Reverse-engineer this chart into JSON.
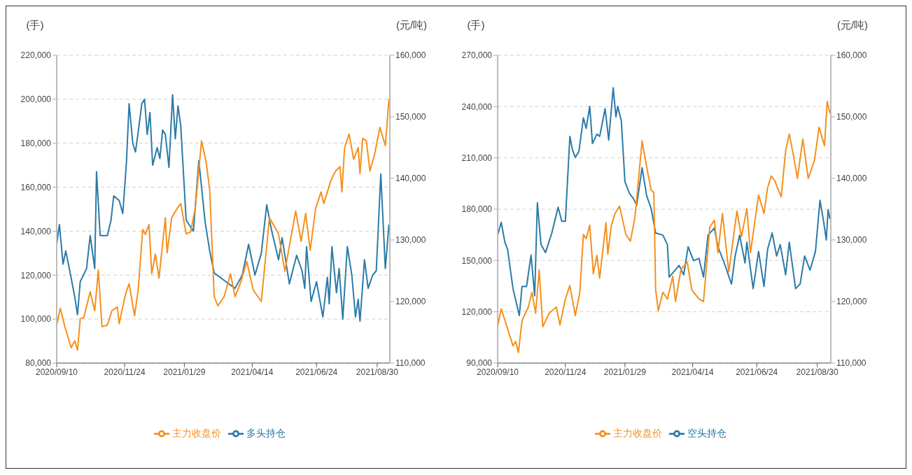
{
  "chart_data": [
    {
      "type": "line",
      "ylabel": "(手)",
      "y2label": "(元/吨)",
      "grid": "y",
      "legend": "bottom",
      "marker": "none",
      "line_style": "solid",
      "xlim": [
        "2020-09-10",
        "2021-09-13"
      ],
      "xticks": [
        {
          "value": "2020-09-10",
          "label": "2020/09/10"
        },
        {
          "value": "2020-11-24",
          "label": "2020/11/24"
        },
        {
          "value": "2021-01-29",
          "label": "2021/01/29"
        },
        {
          "value": "2021-04-14",
          "label": "2021/04/14"
        },
        {
          "value": "2021-06-24",
          "label": "2021/06/24"
        },
        {
          "value": "2021-08-30",
          "label": "2021/08/30"
        }
      ],
      "ylim": [
        80000,
        220000
      ],
      "yticks": [
        {
          "value": 80000,
          "label": "80,000"
        },
        {
          "value": 100000,
          "label": "100,000"
        },
        {
          "value": 120000,
          "label": "120,000"
        },
        {
          "value": 140000,
          "label": "140,000"
        },
        {
          "value": 160000,
          "label": "160,000"
        },
        {
          "value": 180000,
          "label": "180,000"
        },
        {
          "value": 200000,
          "label": "200,000"
        },
        {
          "value": 220000,
          "label": "220,000"
        }
      ],
      "y2lim": [
        110000,
        160000
      ],
      "y2ticks": [
        {
          "value": 110000,
          "label": "110,000"
        },
        {
          "value": 120000,
          "label": "120,000"
        },
        {
          "value": 130000,
          "label": "130,000"
        },
        {
          "value": 140000,
          "label": "140,000"
        },
        {
          "value": 150000,
          "label": "150,000"
        },
        {
          "value": 160000,
          "label": "160,000"
        }
      ],
      "series": [
        {
          "name": "多头持仓",
          "color": "#2b7ba8",
          "x": [
            "2020-09-10",
            "2020-09-13",
            "2020-09-17",
            "2020-09-20",
            "2020-09-23",
            "2020-09-30",
            "2020-10-03",
            "2020-10-06",
            "2020-10-13",
            "2020-10-17",
            "2020-10-22",
            "2020-10-24",
            "2020-10-28",
            "2020-11-05",
            "2020-11-09",
            "2020-11-12",
            "2020-11-18",
            "2020-11-22",
            "2020-11-26",
            "2020-11-29",
            "2020-12-03",
            "2020-12-06",
            "2020-12-09",
            "2020-12-13",
            "2020-12-16",
            "2020-12-19",
            "2020-12-22",
            "2020-12-25",
            "2020-12-30",
            "2021-01-02",
            "2021-01-05",
            "2021-01-08",
            "2021-01-12",
            "2021-01-16",
            "2021-01-19",
            "2021-01-22",
            "2021-01-25",
            "2021-01-31",
            "2021-02-08",
            "2021-02-14",
            "2021-02-21",
            "2021-02-26",
            "2021-03-03",
            "2021-03-16",
            "2021-03-26",
            "2021-04-03",
            "2021-04-10",
            "2021-04-17",
            "2021-04-24",
            "2021-04-30",
            "2021-05-05",
            "2021-05-13",
            "2021-05-17",
            "2021-05-25",
            "2021-06-02",
            "2021-06-08",
            "2021-06-11",
            "2021-06-13",
            "2021-06-18",
            "2021-06-24",
            "2021-07-01",
            "2021-07-06",
            "2021-07-08",
            "2021-07-11",
            "2021-07-16",
            "2021-07-19",
            "2021-07-23",
            "2021-07-28",
            "2021-08-02",
            "2021-08-06",
            "2021-08-09",
            "2021-08-11",
            "2021-08-16",
            "2021-08-20",
            "2021-08-25",
            "2021-08-29",
            "2021-09-03",
            "2021-09-08",
            "2021-09-12"
          ],
          "values": [
            134000,
            143000,
            125000,
            131000,
            125000,
            110000,
            102000,
            117000,
            123000,
            138000,
            123000,
            167000,
            138000,
            138000,
            145000,
            156000,
            154000,
            148000,
            171000,
            198000,
            180000,
            176000,
            185000,
            198000,
            200000,
            184000,
            194000,
            170000,
            178000,
            173000,
            186000,
            184000,
            169000,
            202000,
            182000,
            197000,
            188000,
            145000,
            140000,
            172000,
            144000,
            131000,
            121000,
            117000,
            114000,
            120000,
            134000,
            120000,
            130000,
            152000,
            141000,
            127000,
            137000,
            116000,
            129000,
            122000,
            114000,
            133000,
            108000,
            117000,
            101000,
            119000,
            107000,
            133000,
            112000,
            123000,
            100000,
            133000,
            120000,
            101000,
            109000,
            99000,
            127000,
            114000,
            120000,
            122000,
            166000,
            123000,
            143000
          ]
        },
        {
          "name": "主力收盘价",
          "color": "#f5901e",
          "axis": "y2",
          "x": [
            "2020-09-10",
            "2020-09-14",
            "2020-09-19",
            "2020-09-26",
            "2020-09-30",
            "2020-10-03",
            "2020-10-06",
            "2020-10-10",
            "2020-10-17",
            "2020-10-22",
            "2020-10-26",
            "2020-10-30",
            "2020-11-05",
            "2020-11-10",
            "2020-11-16",
            "2020-11-18",
            "2020-11-25",
            "2020-11-29",
            "2020-12-05",
            "2020-12-09",
            "2020-12-14",
            "2020-12-17",
            "2020-12-21",
            "2020-12-24",
            "2020-12-28",
            "2021-01-01",
            "2021-01-08",
            "2021-01-10",
            "2021-01-15",
            "2021-01-21",
            "2021-01-25",
            "2021-01-31",
            "2021-02-05",
            "2021-02-10",
            "2021-02-17",
            "2021-02-22",
            "2021-02-26",
            "2021-03-03",
            "2021-03-07",
            "2021-03-14",
            "2021-03-21",
            "2021-03-26",
            "2021-04-01",
            "2021-04-08",
            "2021-04-15",
            "2021-04-24",
            "2021-05-03",
            "2021-05-13",
            "2021-05-20",
            "2021-06-01",
            "2021-06-07",
            "2021-06-12",
            "2021-06-17",
            "2021-06-23",
            "2021-06-29",
            "2021-07-02",
            "2021-07-10",
            "2021-07-15",
            "2021-07-20",
            "2021-07-22",
            "2021-07-25",
            "2021-07-30",
            "2021-08-04",
            "2021-08-09",
            "2021-08-11",
            "2021-08-14",
            "2021-08-18",
            "2021-08-22",
            "2021-08-27",
            "2021-09-02",
            "2021-09-08",
            "2021-09-12"
          ],
          "values": [
            116200,
            118900,
            115900,
            112500,
            113600,
            112100,
            117200,
            117400,
            121600,
            118500,
            125100,
            115900,
            116200,
            118500,
            119100,
            116400,
            121200,
            122900,
            117700,
            121900,
            131700,
            130900,
            132500,
            124500,
            127700,
            123800,
            133600,
            127900,
            133600,
            135100,
            135900,
            131000,
            131300,
            135100,
            146100,
            142700,
            138200,
            120800,
            119300,
            120800,
            124500,
            120800,
            123000,
            126500,
            121900,
            120000,
            133600,
            131000,
            124900,
            134700,
            129800,
            134300,
            128300,
            135100,
            137800,
            135900,
            139700,
            141200,
            141900,
            137800,
            145000,
            147200,
            143100,
            145000,
            140800,
            146500,
            146100,
            141200,
            143800,
            148300,
            145300,
            152900
          ]
        }
      ]
    },
    {
      "type": "line",
      "ylabel": "(手)",
      "y2label": "(元/吨)",
      "grid": "y",
      "legend": "bottom",
      "marker": "none",
      "line_style": "solid",
      "xlim": [
        "2020-09-10",
        "2021-09-14"
      ],
      "xticks": [
        {
          "value": "2020-09-10",
          "label": "2020/09/10"
        },
        {
          "value": "2020-11-24",
          "label": "2020/11/24"
        },
        {
          "value": "2021-01-29",
          "label": "2021/01/29"
        },
        {
          "value": "2021-04-14",
          "label": "2021/04/14"
        },
        {
          "value": "2021-06-24",
          "label": "2021/06/24"
        },
        {
          "value": "2021-08-30",
          "label": "2021/08/30"
        }
      ],
      "ylim": [
        90000,
        270000
      ],
      "yticks": [
        {
          "value": 90000,
          "label": "90,000"
        },
        {
          "value": 120000,
          "label": "120,000"
        },
        {
          "value": 150000,
          "label": "150,000"
        },
        {
          "value": 180000,
          "label": "180,000"
        },
        {
          "value": 210000,
          "label": "210,000"
        },
        {
          "value": 240000,
          "label": "240,000"
        },
        {
          "value": 270000,
          "label": "270,000"
        }
      ],
      "y2lim": [
        110000,
        160000
      ],
      "y2ticks": [
        {
          "value": 110000,
          "label": "110,000"
        },
        {
          "value": 120000,
          "label": "120,000"
        },
        {
          "value": 130000,
          "label": "130,000"
        },
        {
          "value": 140000,
          "label": "140,000"
        },
        {
          "value": 150000,
          "label": "150,000"
        },
        {
          "value": 160000,
          "label": "160,000"
        }
      ],
      "series": [
        {
          "name": "空头持仓",
          "color": "#2b7ba8",
          "x": [
            "2020-09-10",
            "2020-09-14",
            "2020-09-18",
            "2020-09-21",
            "2020-09-27",
            "2020-10-04",
            "2020-10-07",
            "2020-10-12",
            "2020-10-17",
            "2020-10-21",
            "2020-10-24",
            "2020-10-28",
            "2020-11-02",
            "2020-11-09",
            "2020-11-16",
            "2020-11-20",
            "2020-11-24",
            "2020-11-29",
            "2020-12-02",
            "2020-12-05",
            "2020-12-09",
            "2020-12-14",
            "2020-12-17",
            "2020-12-21",
            "2020-12-24",
            "2020-12-29",
            "2021-01-01",
            "2021-01-07",
            "2021-01-11",
            "2021-01-16",
            "2021-01-19",
            "2021-01-21",
            "2021-01-25",
            "2021-01-29",
            "2021-02-03",
            "2021-02-07",
            "2021-02-11",
            "2021-02-17",
            "2021-02-22",
            "2021-02-27",
            "2021-03-04",
            "2021-03-12",
            "2021-03-17",
            "2021-03-19",
            "2021-03-30",
            "2021-04-04",
            "2021-04-09",
            "2021-04-15",
            "2021-04-21",
            "2021-04-26",
            "2021-05-01",
            "2021-05-08",
            "2021-05-12",
            "2021-05-19",
            "2021-05-27",
            "2021-05-31",
            "2021-06-05",
            "2021-06-11",
            "2021-06-13",
            "2021-06-20",
            "2021-06-26",
            "2021-07-02",
            "2021-07-06",
            "2021-07-11",
            "2021-07-16",
            "2021-07-20",
            "2021-07-26",
            "2021-07-30",
            "2021-08-06",
            "2021-08-11",
            "2021-08-16",
            "2021-08-22",
            "2021-08-28",
            "2021-09-02",
            "2021-09-06",
            "2021-09-09",
            "2021-09-11",
            "2021-09-13"
          ],
          "values": [
            164800,
            172300,
            160700,
            156500,
            133500,
            117800,
            134800,
            134800,
            153100,
            129400,
            183800,
            159300,
            154600,
            166100,
            181100,
            172900,
            172900,
            222500,
            214400,
            210300,
            213700,
            233400,
            227200,
            240100,
            218400,
            223900,
            222500,
            238800,
            220400,
            251000,
            234000,
            240100,
            231400,
            196000,
            189200,
            186500,
            182400,
            204200,
            187900,
            180400,
            166100,
            164800,
            159300,
            140300,
            147100,
            141600,
            158000,
            149900,
            151200,
            140300,
            164800,
            168900,
            158000,
            148500,
            136200,
            152600,
            164800,
            148500,
            160700,
            133500,
            155300,
            134800,
            156600,
            166100,
            152600,
            159300,
            141600,
            160700,
            133500,
            136200,
            152600,
            144400,
            155300,
            185200,
            172900,
            162000,
            179700,
            174300
          ]
        },
        {
          "name": "主力收盘价",
          "color": "#f5901e",
          "axis": "y2",
          "x": [
            "2020-09-10",
            "2020-09-14",
            "2020-09-19",
            "2020-09-27",
            "2020-09-30",
            "2020-10-03",
            "2020-10-07",
            "2020-10-14",
            "2020-10-18",
            "2020-10-22",
            "2020-10-26",
            "2020-10-30",
            "2020-11-06",
            "2020-11-14",
            "2020-11-18",
            "2020-11-24",
            "2020-11-29",
            "2020-12-05",
            "2020-12-10",
            "2020-12-14",
            "2020-12-17",
            "2020-12-21",
            "2020-12-25",
            "2020-12-29",
            "2021-01-01",
            "2021-01-08",
            "2021-01-10",
            "2021-01-14",
            "2021-01-18",
            "2021-01-23",
            "2021-01-30",
            "2021-02-04",
            "2021-02-09",
            "2021-02-17",
            "2021-02-21",
            "2021-02-27",
            "2021-03-02",
            "2021-03-04",
            "2021-03-07",
            "2021-03-12",
            "2021-03-17",
            "2021-03-23",
            "2021-03-26",
            "2021-04-01",
            "2021-04-08",
            "2021-04-13",
            "2021-04-21",
            "2021-04-26",
            "2021-05-03",
            "2021-05-08",
            "2021-05-12",
            "2021-05-17",
            "2021-05-24",
            "2021-06-02",
            "2021-06-07",
            "2021-06-13",
            "2021-06-17",
            "2021-06-26",
            "2021-07-02",
            "2021-07-06",
            "2021-07-10",
            "2021-07-14",
            "2021-07-21",
            "2021-07-26",
            "2021-07-30",
            "2021-08-04",
            "2021-08-08",
            "2021-08-14",
            "2021-08-20",
            "2021-08-27",
            "2021-09-01",
            "2021-09-07",
            "2021-09-10",
            "2021-09-13"
          ],
          "values": [
            116000,
            118800,
            116500,
            112800,
            113500,
            111700,
            116900,
            119100,
            121500,
            118100,
            125100,
            115900,
            118100,
            119100,
            116200,
            120400,
            122600,
            117700,
            121500,
            130900,
            130200,
            132400,
            124500,
            127500,
            123800,
            132800,
            127700,
            132400,
            134300,
            135500,
            130900,
            129800,
            133600,
            146100,
            142700,
            138100,
            137700,
            121900,
            118500,
            121500,
            120400,
            124100,
            120000,
            125200,
            126400,
            121900,
            120400,
            120000,
            132100,
            133200,
            127900,
            134300,
            124800,
            134700,
            130500,
            135100,
            127900,
            137300,
            134300,
            138500,
            140400,
            139600,
            137000,
            144500,
            147200,
            143400,
            140000,
            146400,
            140000,
            143000,
            148300,
            145300,
            152500,
            150600
          ]
        }
      ]
    }
  ]
}
